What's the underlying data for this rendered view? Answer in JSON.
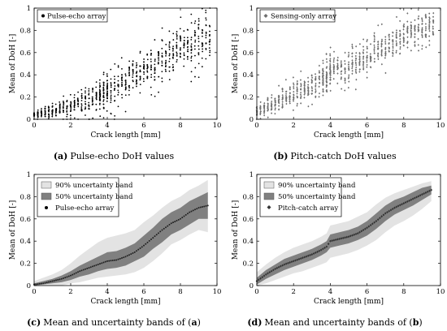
{
  "chart_data": [
    {
      "type": "scatter",
      "panel": "a",
      "caption_label": "(a)",
      "caption_text": "Pulse-echo DoH values",
      "xlabel": "Crack length [mm]",
      "ylabel": "Mean of DoH [-]",
      "xlim": [
        0,
        10
      ],
      "ylim": [
        0,
        1
      ],
      "xticks": [
        0,
        2,
        4,
        6,
        8,
        10
      ],
      "yticks": [
        0,
        0.2,
        0.4,
        0.6,
        0.8,
        1
      ],
      "legend_position": "top-left",
      "grid": false,
      "series": [
        {
          "name": "Pulse-echo array",
          "color": "#000000",
          "marker": "dot",
          "trend": {
            "x": [
              0,
              1,
              2,
              3,
              3.8,
              4,
              5,
              6,
              7,
              8,
              9,
              9.7
            ],
            "y_center": [
              0.02,
              0.05,
              0.1,
              0.15,
              0.2,
              0.23,
              0.3,
              0.4,
              0.52,
              0.63,
              0.72,
              0.75
            ],
            "y_lower": [
              0.0,
              0.0,
              0.0,
              0.02,
              0.05,
              0.07,
              0.12,
              0.18,
              0.27,
              0.38,
              0.45,
              0.48
            ],
            "y_upper": [
              0.08,
              0.15,
              0.25,
              0.33,
              0.4,
              0.45,
              0.55,
              0.68,
              0.8,
              0.92,
              0.98,
              1.0
            ]
          }
        }
      ]
    },
    {
      "type": "scatter",
      "panel": "b",
      "caption_label": "(b)",
      "caption_text": "Pitch-catch DoH values",
      "xlabel": "Crack length [mm]",
      "ylabel": "Mean of DoH [-]",
      "xlim": [
        0,
        10
      ],
      "ylim": [
        0,
        1
      ],
      "xticks": [
        0,
        2,
        4,
        6,
        8,
        10
      ],
      "yticks": [
        0,
        0.2,
        0.4,
        0.6,
        0.8,
        1
      ],
      "legend_position": "top-left",
      "grid": false,
      "series": [
        {
          "name": "Sensing-only array",
          "color": "#6e6e6e",
          "marker": "diamond",
          "trend": {
            "x": [
              0,
              1,
              2,
              3,
              3.8,
              4,
              5,
              6,
              7,
              8,
              9,
              9.7
            ],
            "y_center": [
              0.05,
              0.12,
              0.22,
              0.3,
              0.38,
              0.42,
              0.48,
              0.55,
              0.65,
              0.77,
              0.85,
              0.87
            ],
            "y_lower": [
              0.0,
              0.02,
              0.08,
              0.14,
              0.2,
              0.25,
              0.3,
              0.36,
              0.45,
              0.56,
              0.66,
              0.7
            ],
            "y_upper": [
              0.15,
              0.27,
              0.38,
              0.47,
              0.56,
              0.62,
              0.68,
              0.75,
              0.85,
              0.95,
              1.0,
              1.0
            ]
          }
        }
      ]
    },
    {
      "type": "line",
      "panel": "c",
      "caption_label": "(c)",
      "caption_text": "Mean and uncertainty bands of (",
      "caption_ref": "a",
      "caption_close": ")",
      "xlabel": "Crack length [mm]",
      "ylabel": "Mean of DoH [-]",
      "xlim": [
        0,
        10
      ],
      "ylim": [
        0,
        1
      ],
      "xticks": [
        0,
        2,
        4,
        6,
        8,
        10
      ],
      "yticks": [
        0,
        0.2,
        0.4,
        0.6,
        0.8,
        1
      ],
      "legend_position": "top-left",
      "grid": false,
      "legend": [
        "90% uncertainty band",
        "50% uncertainty band",
        "Pulse-echo array"
      ],
      "x": [
        0,
        0.5,
        1,
        1.5,
        2,
        2.5,
        3,
        3.5,
        4,
        4.5,
        5,
        5.5,
        6,
        6.5,
        7,
        7.5,
        8,
        8.5,
        9,
        9.5
      ],
      "mean": [
        0.01,
        0.02,
        0.04,
        0.06,
        0.09,
        0.13,
        0.16,
        0.19,
        0.22,
        0.23,
        0.26,
        0.3,
        0.36,
        0.43,
        0.5,
        0.56,
        0.6,
        0.66,
        0.7,
        0.72
      ],
      "band50_lower": [
        0.0,
        0.01,
        0.02,
        0.03,
        0.05,
        0.08,
        0.1,
        0.13,
        0.15,
        0.16,
        0.18,
        0.22,
        0.26,
        0.33,
        0.39,
        0.46,
        0.5,
        0.55,
        0.6,
        0.6
      ],
      "band50_upper": [
        0.02,
        0.04,
        0.06,
        0.09,
        0.13,
        0.18,
        0.22,
        0.26,
        0.3,
        0.31,
        0.34,
        0.38,
        0.45,
        0.52,
        0.6,
        0.66,
        0.7,
        0.76,
        0.8,
        0.84
      ],
      "band90_lower": [
        0.0,
        0.0,
        0.0,
        0.0,
        0.02,
        0.03,
        0.05,
        0.07,
        0.08,
        0.09,
        0.1,
        0.12,
        0.16,
        0.22,
        0.29,
        0.37,
        0.41,
        0.46,
        0.5,
        0.48
      ],
      "band90_upper": [
        0.04,
        0.07,
        0.1,
        0.14,
        0.2,
        0.27,
        0.33,
        0.39,
        0.43,
        0.45,
        0.47,
        0.5,
        0.57,
        0.63,
        0.7,
        0.76,
        0.8,
        0.86,
        0.9,
        0.95
      ]
    },
    {
      "type": "line",
      "panel": "d",
      "caption_label": "(d)",
      "caption_text": "Mean and uncertainty bands of (",
      "caption_ref": "b",
      "caption_close": ")",
      "xlabel": "Crack length [mm]",
      "ylabel": "Mean of DoH [-]",
      "xlim": [
        0,
        10
      ],
      "ylim": [
        0,
        1
      ],
      "xticks": [
        0,
        2,
        4,
        6,
        8,
        10
      ],
      "yticks": [
        0,
        0.2,
        0.4,
        0.6,
        0.8,
        1
      ],
      "legend_position": "top-left",
      "grid": false,
      "legend": [
        "90% uncertainty band",
        "50% uncertainty band",
        "Pitch-catch array"
      ],
      "x": [
        0,
        0.5,
        1,
        1.5,
        2,
        2.5,
        3,
        3.5,
        3.8,
        4,
        4.5,
        5,
        5.5,
        6,
        6.5,
        7,
        7.5,
        8,
        8.5,
        9,
        9.5
      ],
      "mean": [
        0.04,
        0.1,
        0.15,
        0.19,
        0.22,
        0.25,
        0.28,
        0.32,
        0.35,
        0.4,
        0.42,
        0.44,
        0.47,
        0.52,
        0.58,
        0.65,
        0.7,
        0.74,
        0.78,
        0.82,
        0.86
      ],
      "band50_lower": [
        0.01,
        0.06,
        0.1,
        0.14,
        0.17,
        0.2,
        0.23,
        0.27,
        0.3,
        0.34,
        0.36,
        0.38,
        0.41,
        0.45,
        0.51,
        0.58,
        0.64,
        0.68,
        0.72,
        0.77,
        0.82
      ],
      "band50_upper": [
        0.07,
        0.14,
        0.19,
        0.24,
        0.27,
        0.3,
        0.33,
        0.37,
        0.4,
        0.46,
        0.48,
        0.5,
        0.53,
        0.58,
        0.65,
        0.72,
        0.77,
        0.8,
        0.84,
        0.88,
        0.9
      ],
      "band90_lower": [
        0.0,
        0.02,
        0.05,
        0.08,
        0.11,
        0.13,
        0.16,
        0.19,
        0.21,
        0.25,
        0.27,
        0.29,
        0.32,
        0.36,
        0.41,
        0.48,
        0.54,
        0.58,
        0.63,
        0.69,
        0.76
      ],
      "band90_upper": [
        0.12,
        0.19,
        0.25,
        0.3,
        0.34,
        0.37,
        0.4,
        0.44,
        0.47,
        0.54,
        0.56,
        0.58,
        0.62,
        0.66,
        0.73,
        0.79,
        0.83,
        0.86,
        0.89,
        0.92,
        0.94
      ]
    }
  ]
}
